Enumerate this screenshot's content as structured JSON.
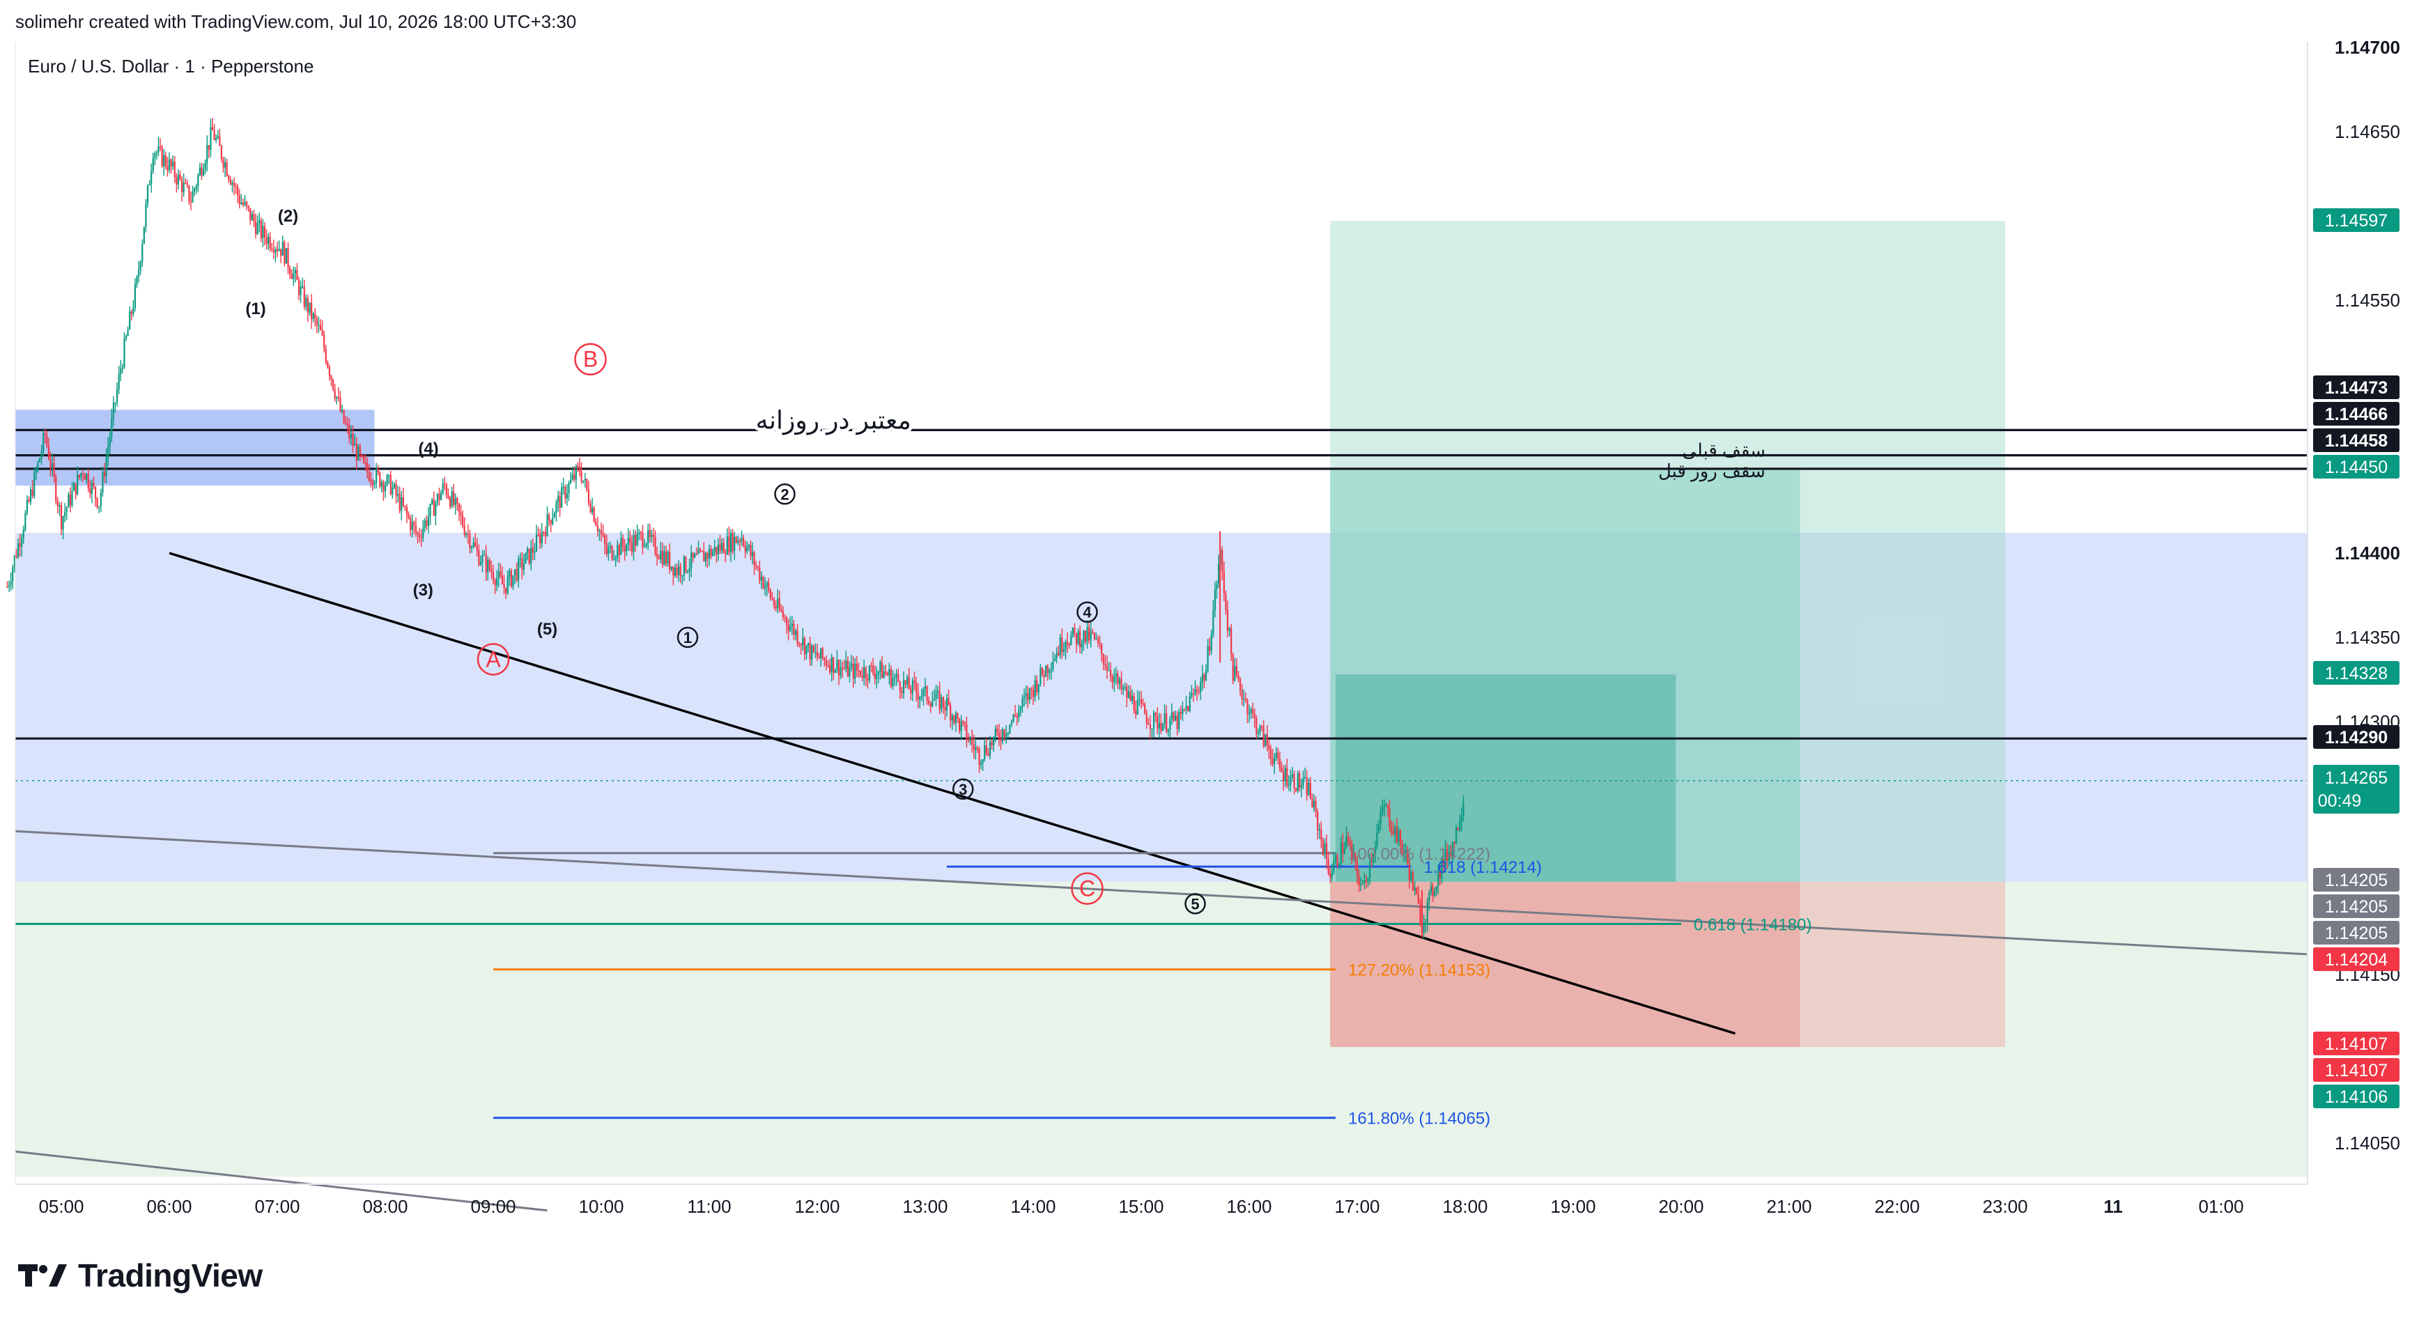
{
  "header": {
    "attribution": "solimehr created with TradingView.com, Jul 10, 2026 18:00 UTC+3:30",
    "symbol": "Euro / U.S. Dollar · 1 · Pepperstone"
  },
  "footer": {
    "brand": "TradingView"
  },
  "colors": {
    "up": "#089981",
    "down": "#f23645",
    "blue_zone": "#d9e3fb",
    "green_zone": "#e8f4e9",
    "target": "#a7dccf",
    "stop": "#eeb2b0",
    "fib_orange": "#f57c00",
    "fib_blue": "#1e53e5"
  },
  "chart_data": {
    "type": "candlestick",
    "symbol": "EURUSD",
    "timeframe": "1",
    "x_ticks": [
      "05:00",
      "06:00",
      "07:00",
      "08:00",
      "09:00",
      "10:00",
      "11:00",
      "12:00",
      "13:00",
      "14:00",
      "15:00",
      "16:00",
      "17:00",
      "18:00",
      "19:00",
      "20:00",
      "21:00",
      "22:00",
      "23:00",
      "11",
      "01:00"
    ],
    "y_ticks": [
      "1.14700",
      "1.14650",
      "1.14550",
      "1.14400",
      "1.14350",
      "1.14300",
      "1.14150",
      "1.14050"
    ],
    "ylim": [
      1.14005,
      1.1471
    ],
    "price_path": [
      [
        4.5,
        1.1438
      ],
      [
        4.7,
        1.1443
      ],
      [
        4.85,
        1.1447
      ],
      [
        5.0,
        1.1442
      ],
      [
        5.2,
        1.1445
      ],
      [
        5.35,
        1.1443
      ],
      [
        5.55,
        1.1451
      ],
      [
        5.7,
        1.1456
      ],
      [
        5.85,
        1.1464
      ],
      [
        6.0,
        1.1463
      ],
      [
        6.2,
        1.1461
      ],
      [
        6.4,
        1.1465
      ],
      [
        6.65,
        1.1461
      ],
      [
        6.85,
        1.1459
      ],
      [
        7.05,
        1.1458
      ],
      [
        7.25,
        1.1455
      ],
      [
        7.4,
        1.1453
      ],
      [
        7.6,
        1.1448
      ],
      [
        7.8,
        1.1445
      ],
      [
        8.05,
        1.1444
      ],
      [
        8.3,
        1.1441
      ],
      [
        8.55,
        1.1444
      ],
      [
        8.85,
        1.144
      ],
      [
        9.1,
        1.1438
      ],
      [
        9.35,
        1.144
      ],
      [
        9.6,
        1.1443
      ],
      [
        9.8,
        1.1445
      ],
      [
        10.05,
        1.144
      ],
      [
        10.4,
        1.1441
      ],
      [
        10.7,
        1.1439
      ],
      [
        11.0,
        1.144
      ],
      [
        11.3,
        1.1441
      ],
      [
        11.6,
        1.1437
      ],
      [
        11.95,
        1.1434
      ],
      [
        12.3,
        1.1433
      ],
      [
        12.6,
        1.1433
      ],
      [
        12.85,
        1.1432
      ],
      [
        13.2,
        1.1431
      ],
      [
        13.5,
        1.1428
      ],
      [
        13.8,
        1.143
      ],
      [
        14.1,
        1.1433
      ],
      [
        14.3,
        1.1435
      ],
      [
        14.55,
        1.1435
      ],
      [
        14.8,
        1.1432
      ],
      [
        15.1,
        1.143
      ],
      [
        15.35,
        1.143
      ],
      [
        15.6,
        1.1433
      ],
      [
        15.73,
        1.144
      ],
      [
        15.85,
        1.1433
      ],
      [
        16.05,
        1.143
      ],
      [
        16.3,
        1.1427
      ],
      [
        16.55,
        1.1426
      ],
      [
        16.75,
        1.1421
      ],
      [
        16.9,
        1.1423
      ],
      [
        17.05,
        1.142
      ],
      [
        17.25,
        1.1425
      ],
      [
        17.45,
        1.1422
      ],
      [
        17.6,
        1.1418
      ],
      [
        17.75,
        1.1421
      ],
      [
        17.9,
        1.1423
      ],
      [
        18.0,
        1.1426
      ]
    ],
    "last_price": "1.14265",
    "countdown": "00:49",
    "price_labels": [
      {
        "text": "1.14597",
        "bg": "#089981"
      },
      {
        "text": "1.14473",
        "bg": "#131722"
      },
      {
        "text": "1.14466",
        "bg": "#131722"
      },
      {
        "text": "1.14458",
        "bg": "#131722"
      },
      {
        "text": "1.14450",
        "bg": "#089981"
      },
      {
        "text": "1.14328",
        "bg": "#089981"
      },
      {
        "text": "1.14290",
        "bg": "#131722"
      },
      {
        "text": "1.14205",
        "bg": "#787b86"
      },
      {
        "text": "1.14205",
        "bg": "#787b86"
      },
      {
        "text": "1.14205",
        "bg": "#787b86"
      },
      {
        "text": "1.14204",
        "bg": "#f23645"
      },
      {
        "text": "1.14107",
        "bg": "#f23645"
      },
      {
        "text": "1.14107",
        "bg": "#f23645"
      },
      {
        "text": "1.14106",
        "bg": "#089981"
      }
    ],
    "horizontal_lines": [
      {
        "price": 1.14473,
        "label": "معتبر در روزانه",
        "color": "#131722"
      },
      {
        "price": 1.14458,
        "label": "سقف قبلی",
        "color": "#131722"
      },
      {
        "price": 1.1445,
        "label": "سقف روز قبل",
        "color": "#131722"
      },
      {
        "price": 1.1429,
        "label": "",
        "color": "#131722"
      }
    ],
    "fib_levels": [
      {
        "label": "100.00% (1.14222)",
        "price": 1.14222,
        "color": "#787b86"
      },
      {
        "label": "1.618 (1.14214)",
        "price": 1.14214,
        "color": "#1e53e5"
      },
      {
        "label": "0.618 (1.14180)",
        "price": 1.1418,
        "color": "#089981"
      },
      {
        "label": "127.20% (1.14153)",
        "price": 1.14153,
        "color": "#f57c00"
      },
      {
        "label": "161.80% (1.14065)",
        "price": 1.14065,
        "color": "#1e53e5"
      }
    ],
    "wave_labels": [
      {
        "text": "(1)",
        "t": 6.8,
        "p": 1.14545
      },
      {
        "text": "(2)",
        "t": 7.1,
        "p": 1.146
      },
      {
        "text": "(3)",
        "t": 8.35,
        "p": 1.14378
      },
      {
        "text": "(4)",
        "t": 8.4,
        "p": 1.14462
      },
      {
        "text": "(5)",
        "t": 9.5,
        "p": 1.14355
      },
      {
        "text": "A",
        "t": 9.0,
        "p": 1.14337,
        "circled": true,
        "color": "#f23645"
      },
      {
        "text": "B",
        "t": 9.9,
        "p": 1.14515,
        "circled": true,
        "color": "#f23645"
      },
      {
        "text": "C",
        "t": 14.5,
        "p": 1.14201,
        "circled": true,
        "color": "#f23645"
      },
      {
        "text": "1",
        "t": 10.8,
        "p": 1.1435,
        "circled": true,
        "color": "#131722"
      },
      {
        "text": "2",
        "t": 11.7,
        "p": 1.14435,
        "circled": true,
        "color": "#131722"
      },
      {
        "text": "3",
        "t": 13.35,
        "p": 1.1426,
        "circled": true,
        "color": "#131722"
      },
      {
        "text": "4",
        "t": 14.5,
        "p": 1.14365,
        "circled": true,
        "color": "#131722"
      },
      {
        "text": "5",
        "t": 15.5,
        "p": 1.14192,
        "circled": true,
        "color": "#131722"
      }
    ]
  }
}
